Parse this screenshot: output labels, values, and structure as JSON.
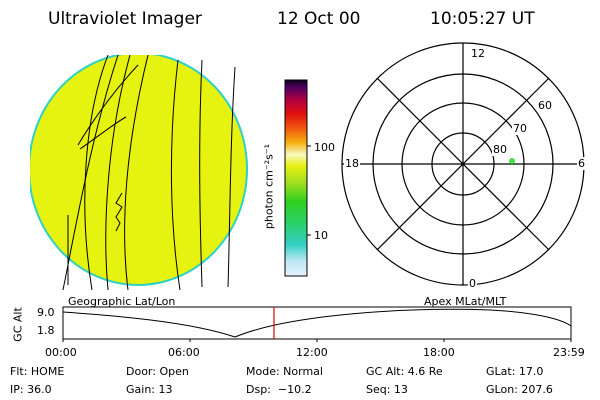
{
  "header": {
    "title": "Ultraviolet Imager",
    "date": "12 Oct 00",
    "time": "10:05:27 UT"
  },
  "colorbar": {
    "unit_label": "photon cm⁻²s⁻¹",
    "ticks": [
      "100",
      "10"
    ]
  },
  "polar": {
    "mlt_labels": {
      "top": "12",
      "left": "18",
      "right": "6",
      "bottom": "0"
    },
    "lat_labels": [
      "60",
      "70",
      "80"
    ]
  },
  "map_labels": {
    "left": "Geographic Lat/Lon",
    "right": "Apex MLat/MLT"
  },
  "alt_plot": {
    "ylabel": "GC Alt",
    "y_ticks": [
      "9.0",
      "1.8"
    ],
    "x_ticks": [
      "00:00",
      "06:00",
      "12:00",
      "18:00",
      "23:59"
    ]
  },
  "status": {
    "row1": [
      "Flt: HOME",
      "Door: Open",
      "Mode: Normal",
      "GC Alt: 4.6 Re",
      "GLat: 17.0"
    ],
    "row2": [
      "IP: 36.0",
      "Gain: 13",
      "Dsp:  −10.2",
      "Seq: 13",
      "GLon: 207.6"
    ]
  },
  "colors": {
    "disk": "#e6f20f",
    "disk_edge": "#2fd0c6",
    "marker": "#44e044",
    "time_marker": "#e00000"
  }
}
